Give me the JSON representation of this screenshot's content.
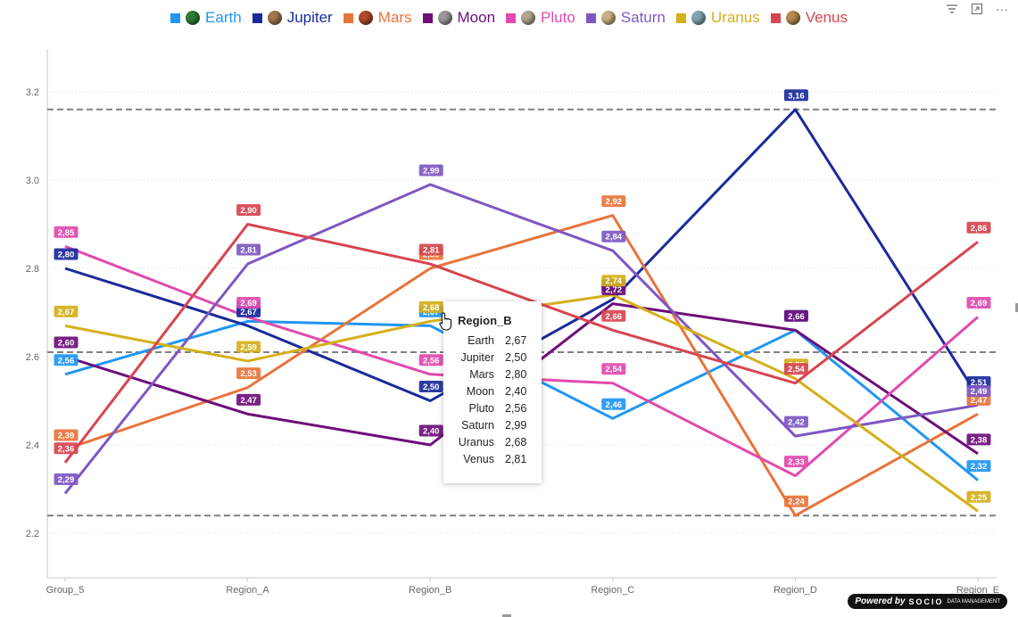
{
  "toolbar": {
    "filter_icon": "filter-icon",
    "focus_icon": "focus-mode-icon",
    "more_label": "···"
  },
  "legend": [
    {
      "name": "Earth",
      "color": "#2196F3",
      "planet_color": "#2e7d32"
    },
    {
      "name": "Jupiter",
      "color": "#1A2A9A",
      "planet_color": "#a0784c"
    },
    {
      "name": "Mars",
      "color": "#E8743B",
      "planet_color": "#b04a28"
    },
    {
      "name": "Moon",
      "color": "#6E0F7A",
      "planet_color": "#9a9a9a"
    },
    {
      "name": "Pluto",
      "color": "#E14AAE",
      "planet_color": "#b4a590"
    },
    {
      "name": "Saturn",
      "color": "#7E57C2",
      "planet_color": "#c9b283"
    },
    {
      "name": "Uranus",
      "color": "#D4B01A",
      "planet_color": "#7fa6b0"
    },
    {
      "name": "Venus",
      "color": "#D64550",
      "planet_color": "#b78a4e"
    }
  ],
  "chart_data": {
    "type": "line",
    "categories": [
      "Group_5",
      "Region_A",
      "Region_B",
      "Region_C",
      "Region_D",
      "Region_E"
    ],
    "ylim": [
      2.1,
      3.3
    ],
    "yticks": [
      2.2,
      2.4,
      2.6,
      2.8,
      3.0,
      3.2
    ],
    "ytick_labels": [
      "2.2",
      "2.4",
      "2.6",
      "2.8",
      "3.0",
      "3.2"
    ],
    "grid": true,
    "reference_lines": [
      3.16,
      2.61,
      2.24
    ],
    "series": [
      {
        "name": "Earth",
        "values": [
          2.56,
          2.68,
          2.67,
          2.46,
          2.66,
          2.32
        ],
        "labels": [
          "2,56",
          "2,68",
          "2,67",
          "2,46",
          "2,66",
          "2,32"
        ]
      },
      {
        "name": "Jupiter",
        "values": [
          2.8,
          2.67,
          2.5,
          2.73,
          3.16,
          2.51
        ],
        "labels": [
          "2,80",
          "2,67",
          "2,50",
          "2,73",
          "3,16",
          "2,51"
        ]
      },
      {
        "name": "Mars",
        "values": [
          2.39,
          2.53,
          2.8,
          2.92,
          2.24,
          2.47
        ],
        "labels": [
          "2,39",
          "2,53",
          "2,80",
          "2,92",
          "2,24",
          "2,47"
        ]
      },
      {
        "name": "Moon",
        "values": [
          2.6,
          2.47,
          2.4,
          2.72,
          2.66,
          2.38
        ],
        "labels": [
          "2,60",
          "2,47",
          "2,40",
          "2,72",
          "2,66",
          "2,38"
        ]
      },
      {
        "name": "Pluto",
        "values": [
          2.85,
          2.69,
          2.56,
          2.54,
          2.33,
          2.69
        ],
        "labels": [
          "2,85",
          "2,69",
          "2,56",
          "2,54",
          "2,33",
          "2,69"
        ]
      },
      {
        "name": "Saturn",
        "values": [
          2.29,
          2.81,
          2.99,
          2.84,
          2.42,
          2.49
        ],
        "labels": [
          "2,29",
          "2,81",
          "2,99",
          "2,84",
          "2,42",
          "2,49"
        ]
      },
      {
        "name": "Uranus",
        "values": [
          2.67,
          2.59,
          2.68,
          2.74,
          2.55,
          2.25
        ],
        "labels": [
          "2,67",
          "2,59",
          "2,68",
          "2,74",
          "2,55",
          "2,25"
        ]
      },
      {
        "name": "Venus",
        "values": [
          2.36,
          2.9,
          2.81,
          2.66,
          2.54,
          2.86
        ],
        "labels": [
          "2,36",
          "2,90",
          "2,81",
          "2,66",
          "2,54",
          "2,86"
        ]
      }
    ]
  },
  "tooltip": {
    "title": "Region_B",
    "rows": [
      {
        "name": "Earth",
        "value": "2,67"
      },
      {
        "name": "Jupiter",
        "value": "2,50"
      },
      {
        "name": "Mars",
        "value": "2,80"
      },
      {
        "name": "Moon",
        "value": "2,40"
      },
      {
        "name": "Pluto",
        "value": "2,56"
      },
      {
        "name": "Saturn",
        "value": "2,99"
      },
      {
        "name": "Uranus",
        "value": "2,68"
      },
      {
        "name": "Venus",
        "value": "2,81"
      }
    ]
  },
  "badge": {
    "powered_by": "Powered by",
    "brand": "SOCIO",
    "brand_sub": "DATA MANAGEMENT"
  }
}
